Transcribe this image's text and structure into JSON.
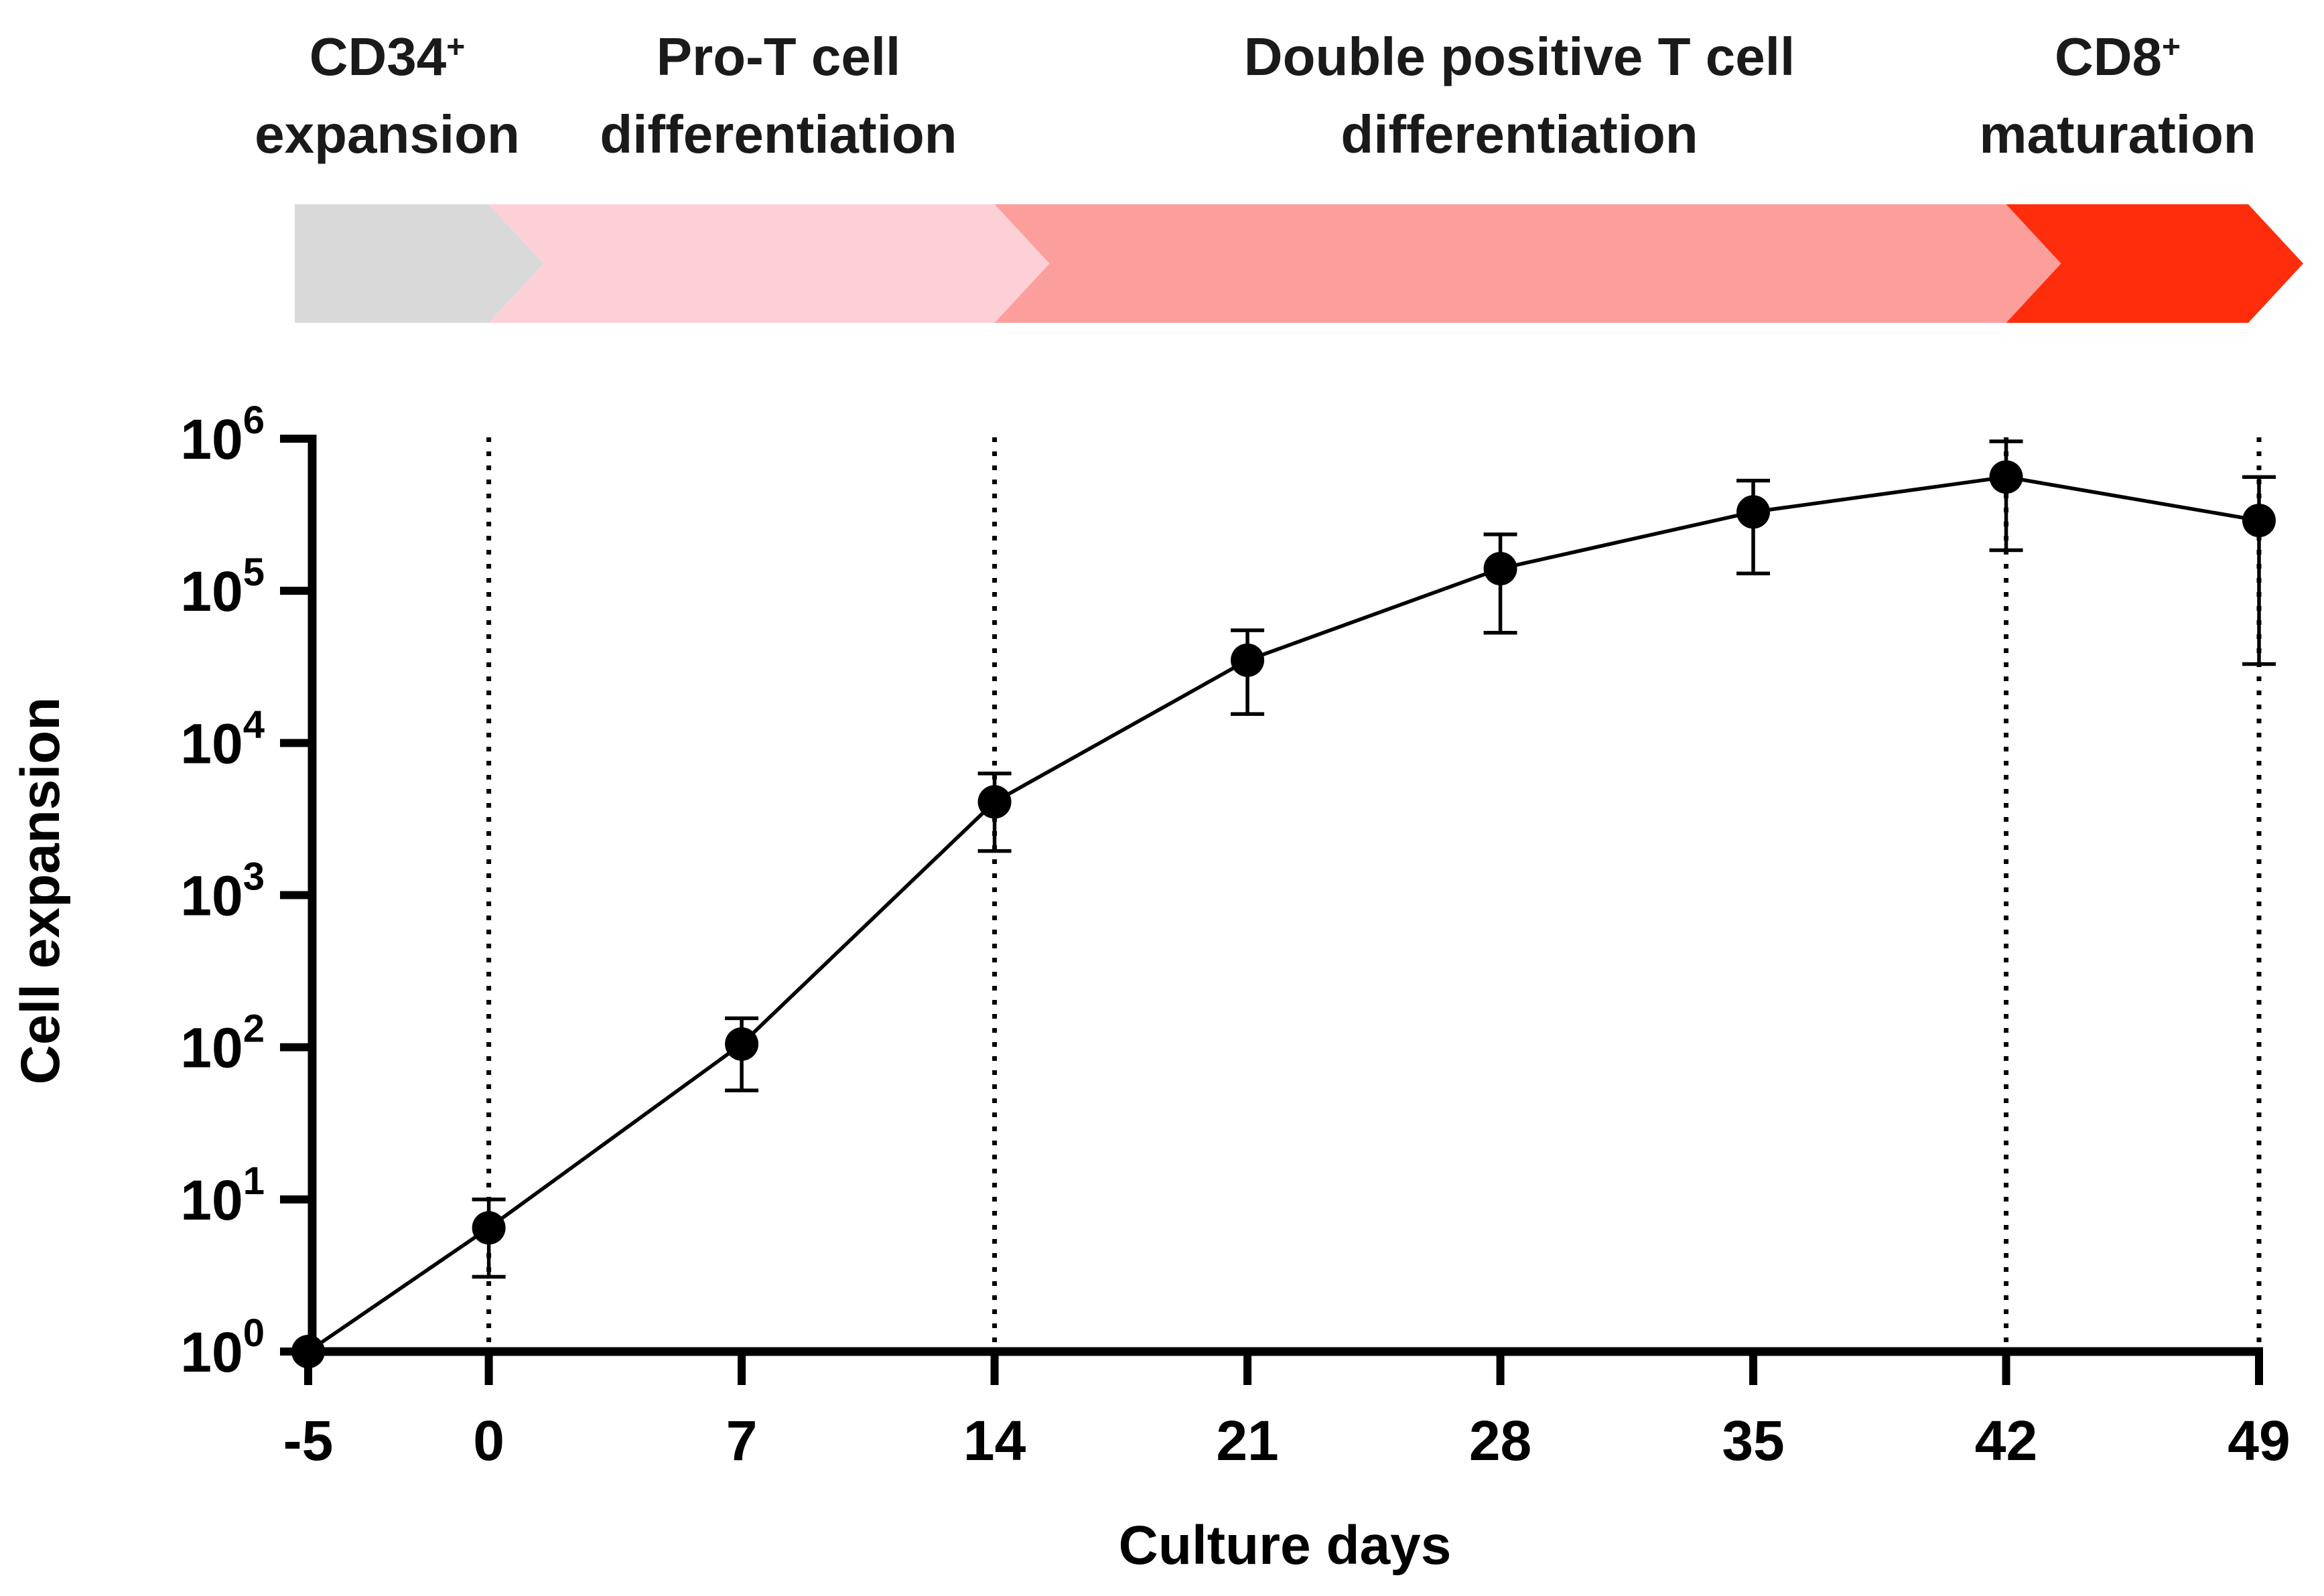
{
  "phases": [
    {
      "line1": "CD34",
      "sup": "+",
      "line2": "expansion",
      "color": "#d9d9d9",
      "start": -5,
      "end": 0
    },
    {
      "line1": "Pro-T cell",
      "sup": "",
      "line2": "differentiation",
      "color": "#fdd0d7",
      "start": 0,
      "end": 14
    },
    {
      "line1": "Double positive T cell",
      "sup": "",
      "line2": "differentiation",
      "color": "#fc9e9c",
      "start": 14,
      "end": 42
    },
    {
      "line1": "CD8",
      "sup": "+",
      "line2": "maturation",
      "color": "#fe2d0b",
      "start": 42,
      "end": 49
    }
  ],
  "chart_data": {
    "type": "line",
    "title": "",
    "xlabel": "Culture days",
    "ylabel": "Cell expansion",
    "yscale": "log10",
    "xlim": [
      -5,
      49
    ],
    "ylim": [
      1,
      1000000
    ],
    "x_ticks": [
      -5,
      0,
      7,
      14,
      21,
      28,
      35,
      42,
      49
    ],
    "x_tick_labels": [
      "-5",
      "0",
      "7",
      "14",
      "21",
      "28",
      "35",
      "42",
      "49"
    ],
    "y_ticks": [
      {
        "base": "10",
        "exp": "0",
        "value": 1
      },
      {
        "base": "10",
        "exp": "1",
        "value": 10
      },
      {
        "base": "10",
        "exp": "2",
        "value": 100
      },
      {
        "base": "10",
        "exp": "3",
        "value": 1000
      },
      {
        "base": "10",
        "exp": "4",
        "value": 10000
      },
      {
        "base": "10",
        "exp": "5",
        "value": 100000
      },
      {
        "base": "10",
        "exp": "6",
        "value": 1000000
      }
    ],
    "dotted_vlines": [
      0,
      14,
      42,
      49
    ],
    "series": [
      {
        "name": "Cell expansion",
        "color": "#000000",
        "x": [
          -5,
          0,
          7,
          14,
          21,
          28,
          35,
          42,
          49
        ],
        "y": [
          1,
          6.5,
          105,
          4100,
          35000,
          140000,
          330000,
          560000,
          290000
        ],
        "error_low": [
          1,
          3.1,
          52,
          1950,
          15500,
          53000,
          130000,
          185000,
          33000
        ],
        "error_high": [
          1,
          10,
          155,
          6300,
          55000,
          235000,
          530000,
          960000,
          560000
        ]
      }
    ]
  }
}
